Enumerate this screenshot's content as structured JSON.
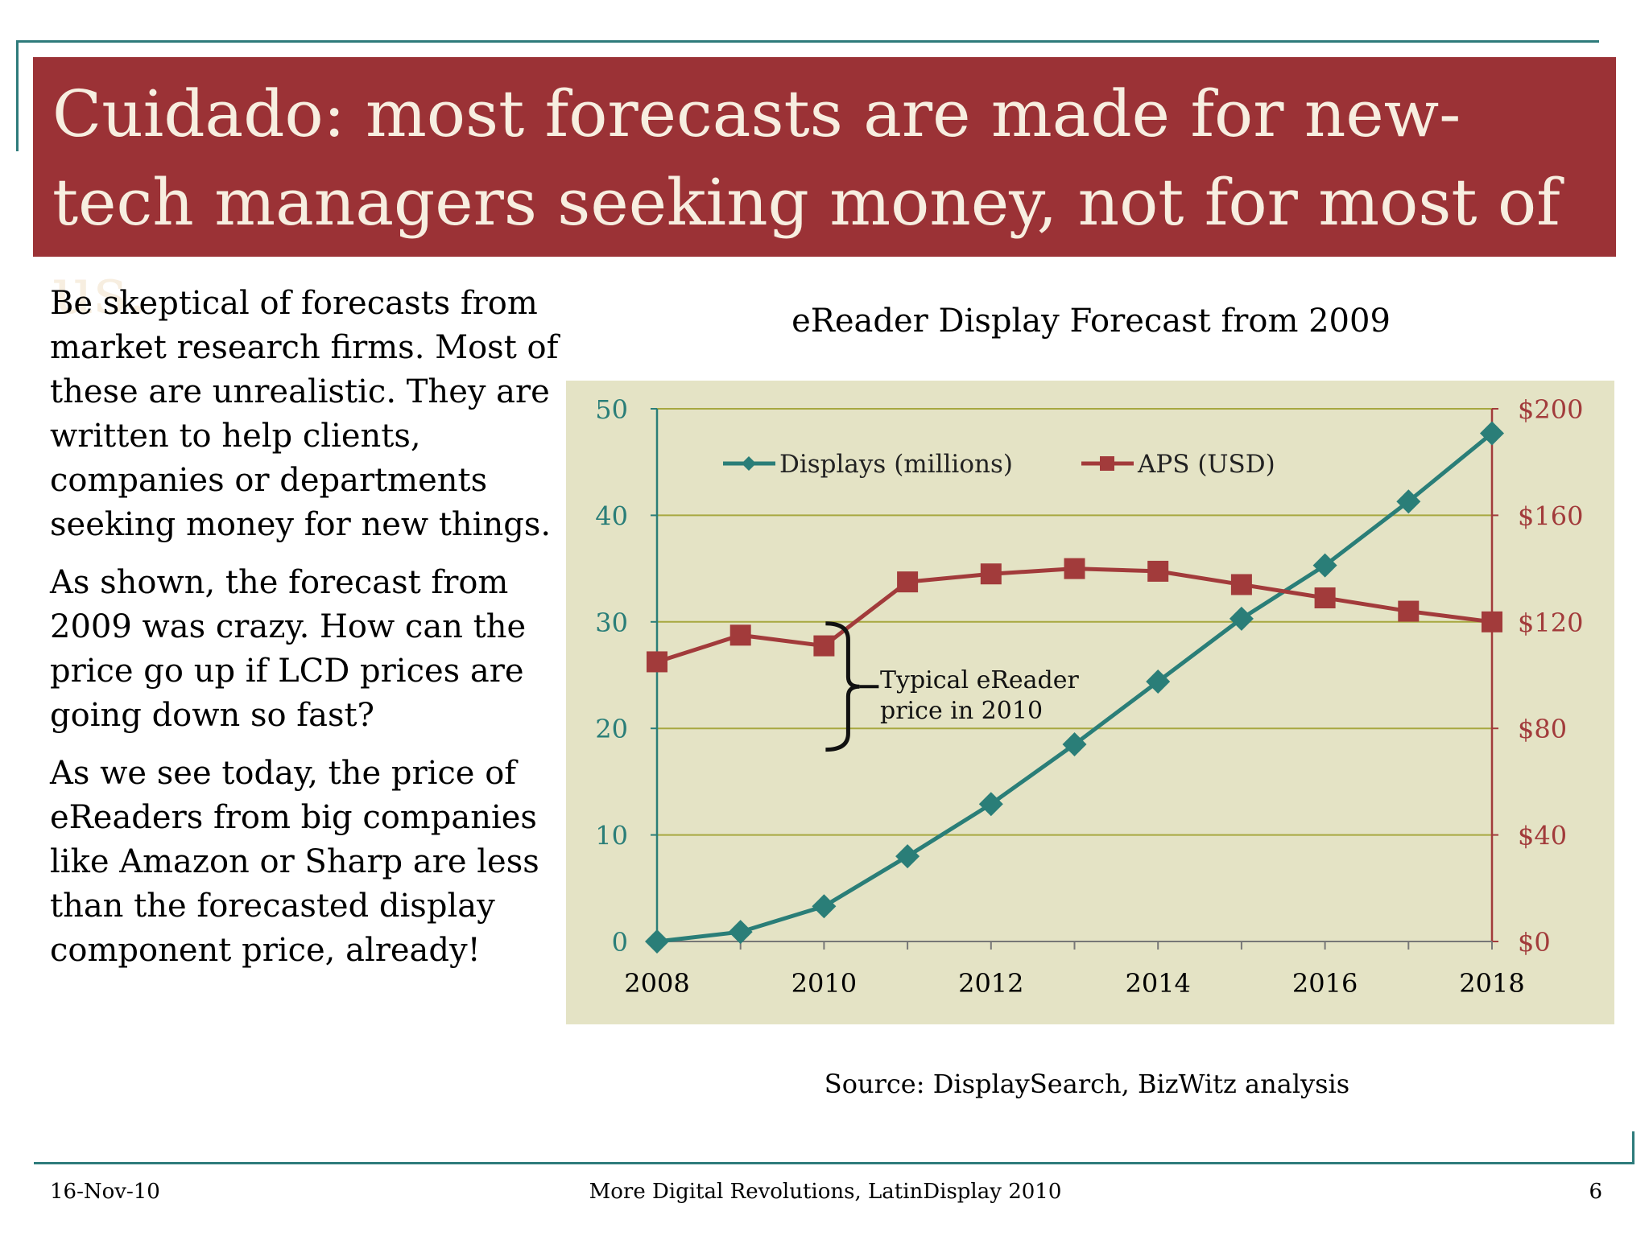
{
  "title": "Cuidado: most forecasts are made for new-tech managers seeking money, not for most of us.",
  "body": {
    "paragraphs": [
      "Be skeptical of forecasts from market research firms. Most of these are unrealistic. They are written to help clients, companies or departments seeking money for new things.",
      "As shown, the forecast from 2009 was crazy. How can the price go up if LCD prices are going down so fast?",
      "As we see today, the price of eReaders from big companies like Amazon or Sharp are less than the forecasted display component price, already!"
    ]
  },
  "source": "Source: DisplaySearch, BizWitz analysis",
  "footer": {
    "date": "16-Nov-10",
    "center": "More Digital Revolutions, LatinDisplay 2010",
    "page": "6"
  },
  "colors": {
    "title_bar": "#9b3236",
    "title_text": "#f7eee0",
    "frame": "#2e7b7b",
    "plot_background": "#e4e3c5",
    "displays_series": "#2a7e78",
    "aps_series": "#a23b3b",
    "gridline": "#a7a840"
  },
  "chart_data": {
    "type": "line",
    "title": "eReader Display Forecast from 2009",
    "x": [
      2008,
      2009,
      2010,
      2011,
      2012,
      2013,
      2014,
      2015,
      2016,
      2017,
      2018
    ],
    "x_ticks": [
      "2008",
      "2010",
      "2012",
      "2014",
      "2016",
      "2018"
    ],
    "xlim": [
      2008,
      2018
    ],
    "ylim_left": [
      0,
      50
    ],
    "y_ticks_left": [
      "0",
      "10",
      "20",
      "30",
      "40",
      "50"
    ],
    "ylim_right": [
      0,
      200
    ],
    "y_ticks_right": [
      "$0",
      "$40",
      "$80",
      "$120",
      "$160",
      "$200"
    ],
    "grid": true,
    "legend_position": "top",
    "series": [
      {
        "name": "Displays (millions)",
        "axis": "left",
        "marker": "diamond",
        "values": [
          0.0,
          0.9,
          3.3,
          8.0,
          12.9,
          18.5,
          24.4,
          30.3,
          35.3,
          41.3,
          47.7
        ]
      },
      {
        "name": "APS (USD)",
        "axis": "right",
        "marker": "square",
        "values": [
          105,
          115,
          111,
          135,
          138,
          140,
          139,
          134,
          129,
          124,
          120
        ]
      }
    ],
    "annotations": [
      {
        "text": [
          "Typical eReader",
          "price in 2010"
        ],
        "x": 2010,
        "y_range_right": [
          72,
          120
        ]
      }
    ]
  }
}
